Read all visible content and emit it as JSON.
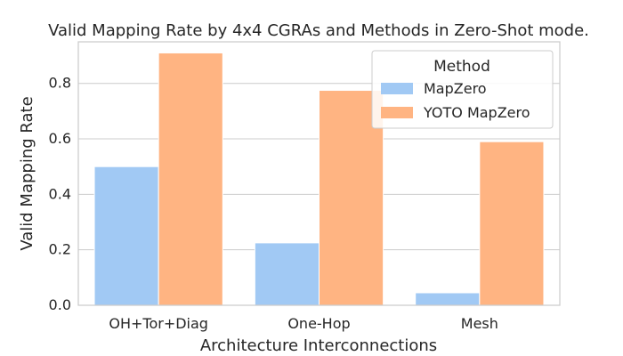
{
  "chart_data": {
    "type": "bar",
    "title": "Valid Mapping Rate by 4x4 CGRAs and Methods in Zero-Shot mode.",
    "xlabel": "Architecture Interconnections",
    "ylabel": "Valid Mapping Rate",
    "categories": [
      "OH+Tor+Diag",
      "One-Hop",
      "Mesh"
    ],
    "series": [
      {
        "name": "MapZero",
        "values": [
          0.5,
          0.225,
          0.045
        ],
        "color": "#a1c9f4"
      },
      {
        "name": "YOTO MapZero",
        "values": [
          0.91,
          0.775,
          0.59
        ],
        "color": "#ffb482"
      }
    ],
    "ylim": [
      0,
      0.95
    ],
    "yticks": [
      0.0,
      0.2,
      0.4,
      0.6,
      0.8
    ],
    "ytick_labels": [
      "0.0",
      "0.2",
      "0.4",
      "0.6",
      "0.8"
    ],
    "grid": true,
    "legend": {
      "title": "Method",
      "placement": "top-right"
    }
  }
}
